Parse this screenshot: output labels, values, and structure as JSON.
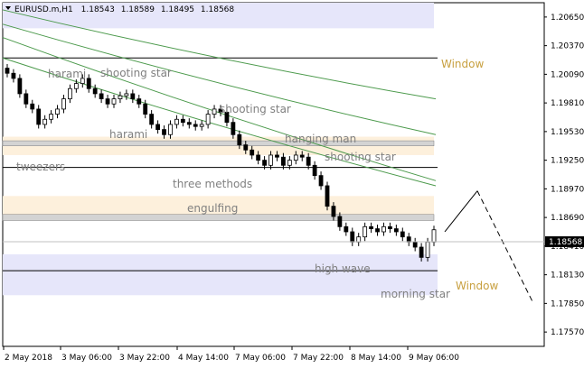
{
  "header": {
    "symbol": "EURUSD.m,H1",
    "open": "1.18543",
    "high": "1.18589",
    "low": "1.18495",
    "close": "1.18568"
  },
  "current_price": "1.18568",
  "price_axis": {
    "ticks": [
      "1.20650",
      "1.20370",
      "1.20090",
      "1.19810",
      "1.19530",
      "1.19250",
      "1.18970",
      "1.18690",
      "1.18410",
      "1.18130",
      "1.17850",
      "1.17570"
    ]
  },
  "time_axis": {
    "ticks": [
      "2 May 2018",
      "3 May 06:00",
      "3 May 22:00",
      "4 May 14:00",
      "7 May 06:00",
      "7 May 22:00",
      "8 May 14:00",
      "9 May 06:00"
    ]
  },
  "annotations": {
    "patterns": [
      "harami",
      "shooting star",
      "harami",
      "shooting star",
      "hanging man",
      "shooting star",
      "tweezers",
      "three methods",
      "engulfing",
      "high wave",
      "morning star"
    ],
    "windows": [
      "Window",
      "Window"
    ]
  },
  "colors": {
    "background": "#ffffff",
    "candle": "#000000",
    "ma": "#4C9A4C",
    "zone_blue": "#E6E6FA",
    "zone_orange": "#FDF0DC",
    "pattern_text": "#808080",
    "window_text": "#C8A040",
    "projection": "#000000"
  },
  "chart_data": {
    "type": "candlestick",
    "title": "EURUSD.m,H1",
    "ylim": [
      1.1743,
      1.2079
    ],
    "y_ticks": [
      1.2065,
      1.2037,
      1.2009,
      1.1981,
      1.1953,
      1.1925,
      1.1897,
      1.1869,
      1.1841,
      1.1813,
      1.1785,
      1.1757
    ],
    "current_price": 1.18568,
    "series_close": [
      1.201,
      1.2005,
      1.199,
      1.198,
      1.1975,
      1.196,
      1.1965,
      1.197,
      1.1975,
      1.1985,
      1.1995,
      1.2,
      1.2005,
      1.1995,
      1.199,
      1.1985,
      1.198,
      1.1985,
      1.1988,
      1.199,
      1.1985,
      1.198,
      1.197,
      1.196,
      1.1955,
      1.195,
      1.196,
      1.1965,
      1.1962,
      1.196,
      1.1958,
      1.196,
      1.197,
      1.1975,
      1.1972,
      1.1962,
      1.195,
      1.194,
      1.1935,
      1.193,
      1.1925,
      1.192,
      1.193,
      1.1928,
      1.192,
      1.1925,
      1.193,
      1.1928,
      1.192,
      1.191,
      1.19,
      1.188,
      1.187,
      1.186,
      1.1855,
      1.1845,
      1.185,
      1.186,
      1.1858,
      1.1855,
      1.186,
      1.1858,
      1.1855,
      1.185,
      1.1845,
      1.184,
      1.183,
      1.1845,
      1.1857
    ],
    "moving_averages": [
      {
        "values": [
          1.2072,
          1.1985
        ]
      },
      {
        "values": [
          1.2058,
          1.195
        ]
      },
      {
        "values": [
          1.2045,
          1.1905
        ]
      },
      {
        "values": [
          1.2025,
          1.19
        ]
      }
    ],
    "zones": [
      {
        "kind": "blue",
        "from": 1.2054,
        "to": 1.2079
      },
      {
        "kind": "orange",
        "from": 1.193,
        "to": 1.1948
      },
      {
        "kind": "gray",
        "from": 1.1939,
        "to": 1.1944
      },
      {
        "kind": "orange",
        "from": 1.1868,
        "to": 1.189
      },
      {
        "kind": "gray",
        "from": 1.1866,
        "to": 1.1872
      },
      {
        "kind": "blue",
        "from": 1.1793,
        "to": 1.1833
      }
    ],
    "lines": [
      1.2025,
      1.1918,
      1.1817
    ],
    "projection": [
      [
        1.1855,
        1.1895
      ],
      [
        1.1895,
        1.1785
      ]
    ]
  }
}
